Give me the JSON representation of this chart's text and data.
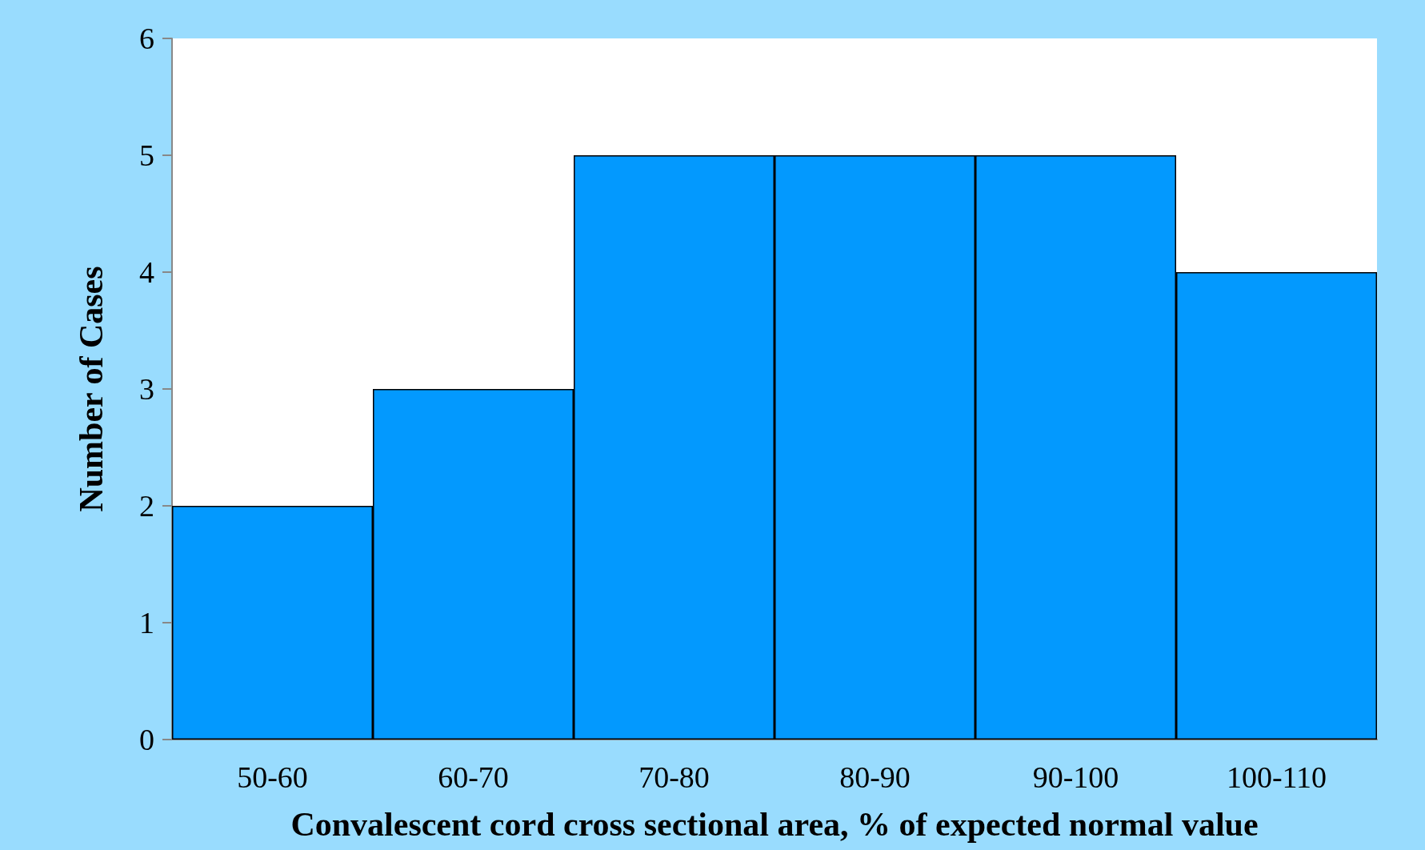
{
  "chart_data": {
    "type": "bar",
    "xlabel": "Convalescent cord cross sectional area, % of expected normal value",
    "ylabel": "Number of Cases",
    "categories": [
      "50-60",
      "60-70",
      "70-80",
      "80-90",
      "90-100",
      "100-110"
    ],
    "values": [
      2,
      3,
      5,
      5,
      5,
      4
    ],
    "color": "#0399fe",
    "ylim": [
      0,
      6
    ],
    "yticks": [
      0,
      1,
      2,
      3,
      4,
      5,
      6
    ],
    "grid": false
  }
}
